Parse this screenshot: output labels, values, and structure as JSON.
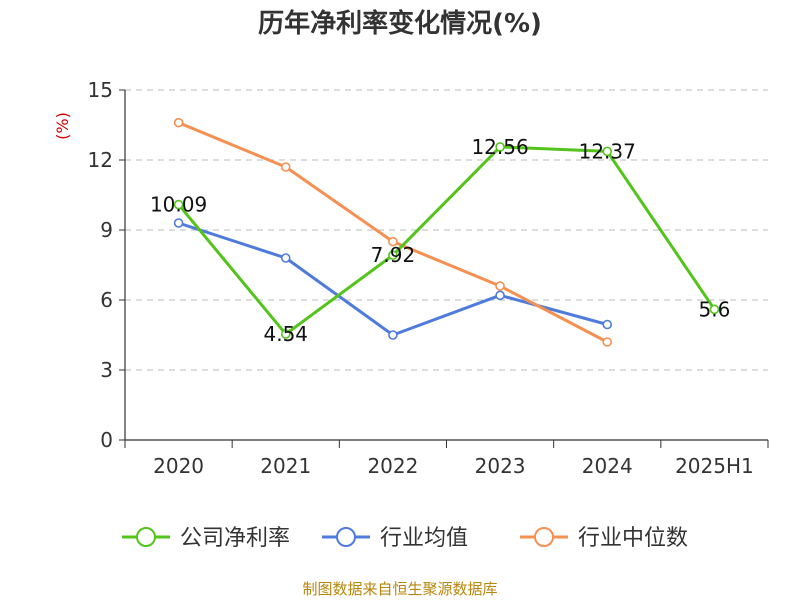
{
  "chart_data": {
    "type": "line",
    "title": "历年净利率变化情况(%)",
    "ylabel": "(%)",
    "categories": [
      "2020",
      "2021",
      "2022",
      "2023",
      "2024",
      "2025H1"
    ],
    "ylim": [
      0,
      15
    ],
    "yticks": [
      "0",
      "3",
      "6",
      "9",
      "12",
      "15"
    ],
    "grid": true,
    "legend_position": "bottom",
    "series": [
      {
        "name": "公司净利率",
        "color": "#52c41a",
        "values": [
          10.09,
          4.54,
          7.92,
          12.56,
          12.37,
          5.6
        ],
        "labels": [
          "10.09",
          "4.54",
          "7.92",
          "12.56",
          "12.37",
          "5.6"
        ]
      },
      {
        "name": "行业均值",
        "color": "#4f7bdc",
        "values": [
          9.3,
          7.8,
          4.5,
          6.2,
          4.95,
          null
        ]
      },
      {
        "name": "行业中位数",
        "color": "#f59051",
        "values": [
          13.6,
          11.7,
          8.5,
          6.6,
          4.2,
          null
        ]
      }
    ]
  },
  "source": "制图数据来自恒生聚源数据库"
}
